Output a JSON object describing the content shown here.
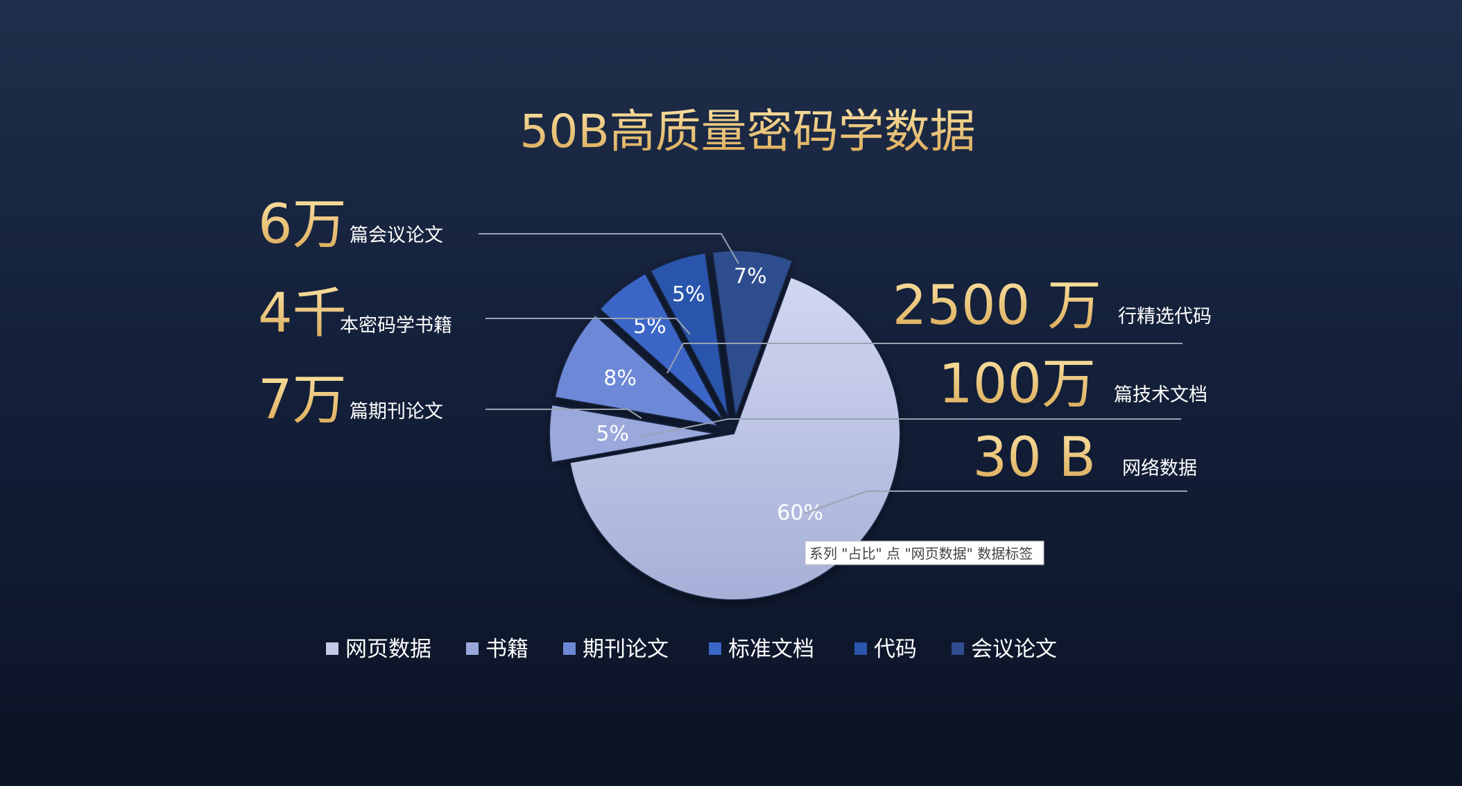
{
  "chart_data": {
    "type": "pie",
    "title": "50B高质量密码学数据",
    "slices": [
      {
        "name": "网页数据",
        "value": 60,
        "label": "60%",
        "color": "#c3c9e7"
      },
      {
        "name": "书籍",
        "value": 5,
        "label": "5%",
        "color": "#9aa8dc"
      },
      {
        "name": "期刊论文",
        "value": 8,
        "label": "8%",
        "color": "#6d88d6"
      },
      {
        "name": "标准文档",
        "value": 5,
        "label": "5%",
        "color": "#3a66c8"
      },
      {
        "name": "代码",
        "value": 5,
        "label": "5%",
        "color": "#2c55ad"
      },
      {
        "name": "会议论文",
        "value": 7,
        "label": "7%",
        "color": "#2f4d8f"
      }
    ],
    "legend_position": "bottom"
  },
  "annotations": {
    "left": [
      {
        "number": "6万",
        "text": "篇会议论文"
      },
      {
        "number": "4千",
        "text": "本密码学书籍"
      },
      {
        "number": "7万",
        "text": "篇期刊论文"
      }
    ],
    "right": [
      {
        "number": "2500 万",
        "text": "行精选代码"
      },
      {
        "number": "100万",
        "text": "篇技术文档"
      },
      {
        "number": "30 B",
        "text": "网络数据"
      }
    ]
  },
  "tooltip": "系列 \"占比\" 点 \"网页数据\" 数据标签",
  "colors": {
    "background_top": "#1f2e4a",
    "background_bottom": "#0b1325",
    "gold": "#f0cf86"
  }
}
